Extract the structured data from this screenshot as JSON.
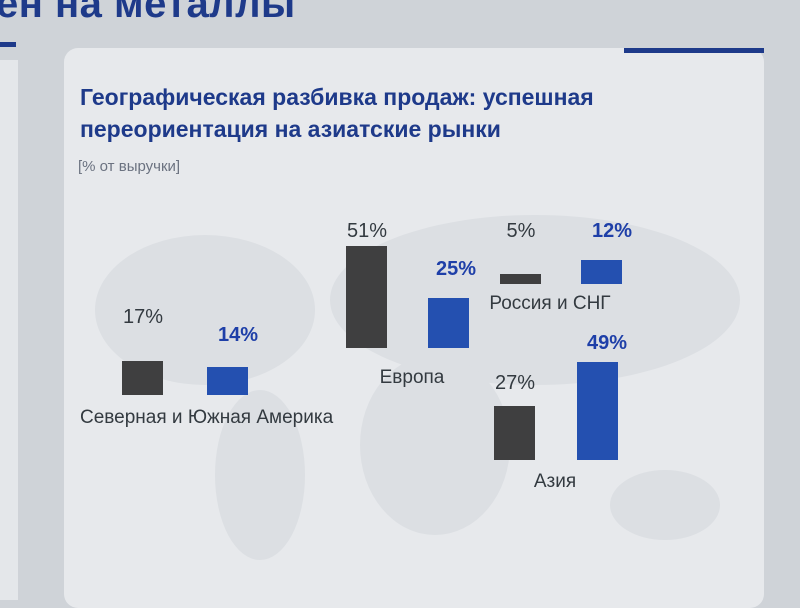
{
  "header": {
    "partial_title": "ен на металлы"
  },
  "card": {
    "title_line1": "Географическая разбивка продаж: успешная",
    "title_line2": "переориентация на азиатские рынки",
    "subtitle": "[% от выручки]"
  },
  "colors": {
    "before": "#3f3f40",
    "after": "#2450b0",
    "title": "#1e3a8a"
  },
  "chart_data": {
    "type": "bar",
    "title": "Географическая разбивка продаж: успешная переориентация на азиатские рынки",
    "ylabel": "[% от выручки]",
    "categories": [
      "Северная и Южная Америка",
      "Европа",
      "Россия и СНГ",
      "Азия"
    ],
    "series": [
      {
        "values": [
          17,
          51,
          5,
          27
        ],
        "labels": [
          "17%",
          "51%",
          "5%",
          "27%"
        ]
      },
      {
        "values": [
          14,
          25,
          12,
          49
        ],
        "labels": [
          "14%",
          "25%",
          "12%",
          "49%"
        ]
      }
    ]
  }
}
